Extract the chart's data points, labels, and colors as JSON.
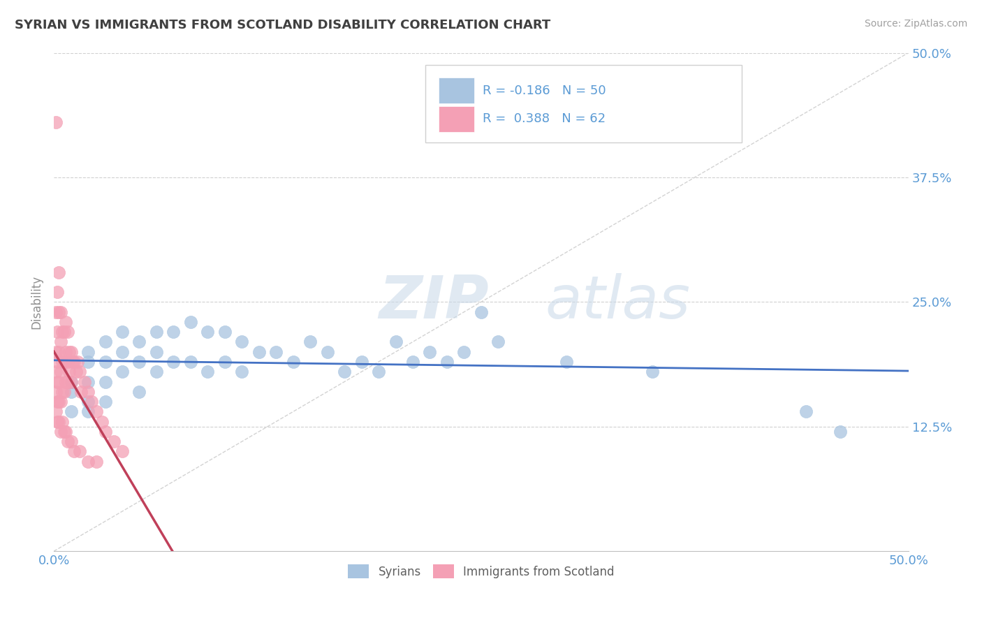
{
  "title": "SYRIAN VS IMMIGRANTS FROM SCOTLAND DISABILITY CORRELATION CHART",
  "source": "Source: ZipAtlas.com",
  "ylabel": "Disability",
  "xlim": [
    0.0,
    0.5
  ],
  "ylim": [
    0.0,
    0.5
  ],
  "blue_R": -0.186,
  "blue_N": 50,
  "pink_R": 0.388,
  "pink_N": 62,
  "blue_color": "#a8c4e0",
  "pink_color": "#f4a0b5",
  "blue_line_color": "#4472c4",
  "pink_line_color": "#c0405a",
  "legend_label_blue": "Syrians",
  "legend_label_pink": "Immigrants from Scotland",
  "watermark_zip": "ZIP",
  "watermark_atlas": "atlas",
  "title_color": "#404040",
  "axis_color": "#5b9bd5",
  "grid_color": "#d0d0d0",
  "blue_scatter_x": [
    0.01,
    0.01,
    0.01,
    0.02,
    0.02,
    0.02,
    0.02,
    0.02,
    0.03,
    0.03,
    0.03,
    0.03,
    0.04,
    0.04,
    0.04,
    0.05,
    0.05,
    0.05,
    0.06,
    0.06,
    0.06,
    0.07,
    0.07,
    0.08,
    0.08,
    0.09,
    0.09,
    0.1,
    0.1,
    0.11,
    0.11,
    0.12,
    0.13,
    0.14,
    0.15,
    0.16,
    0.17,
    0.18,
    0.19,
    0.2,
    0.21,
    0.22,
    0.23,
    0.24,
    0.25,
    0.26,
    0.3,
    0.35,
    0.44,
    0.46
  ],
  "blue_scatter_y": [
    0.17,
    0.16,
    0.14,
    0.2,
    0.19,
    0.17,
    0.15,
    0.14,
    0.21,
    0.19,
    0.17,
    0.15,
    0.22,
    0.2,
    0.18,
    0.21,
    0.19,
    0.16,
    0.22,
    0.2,
    0.18,
    0.22,
    0.19,
    0.23,
    0.19,
    0.22,
    0.18,
    0.22,
    0.19,
    0.21,
    0.18,
    0.2,
    0.2,
    0.19,
    0.21,
    0.2,
    0.18,
    0.19,
    0.18,
    0.21,
    0.19,
    0.2,
    0.19,
    0.2,
    0.24,
    0.21,
    0.19,
    0.18,
    0.14,
    0.12
  ],
  "pink_scatter_x": [
    0.001,
    0.001,
    0.001,
    0.001,
    0.001,
    0.002,
    0.002,
    0.002,
    0.002,
    0.002,
    0.003,
    0.003,
    0.003,
    0.003,
    0.003,
    0.004,
    0.004,
    0.004,
    0.004,
    0.005,
    0.005,
    0.005,
    0.006,
    0.006,
    0.006,
    0.007,
    0.007,
    0.007,
    0.008,
    0.008,
    0.008,
    0.009,
    0.009,
    0.01,
    0.01,
    0.011,
    0.012,
    0.013,
    0.014,
    0.015,
    0.016,
    0.018,
    0.02,
    0.022,
    0.025,
    0.028,
    0.03,
    0.035,
    0.04,
    0.001,
    0.002,
    0.003,
    0.004,
    0.005,
    0.006,
    0.007,
    0.008,
    0.01,
    0.012,
    0.015,
    0.02,
    0.025
  ],
  "pink_scatter_y": [
    0.43,
    0.24,
    0.2,
    0.18,
    0.16,
    0.26,
    0.22,
    0.19,
    0.17,
    0.15,
    0.28,
    0.24,
    0.2,
    0.17,
    0.15,
    0.24,
    0.21,
    0.18,
    0.15,
    0.22,
    0.19,
    0.16,
    0.22,
    0.19,
    0.16,
    0.23,
    0.2,
    0.17,
    0.22,
    0.19,
    0.17,
    0.2,
    0.18,
    0.2,
    0.17,
    0.19,
    0.19,
    0.18,
    0.19,
    0.18,
    0.16,
    0.17,
    0.16,
    0.15,
    0.14,
    0.13,
    0.12,
    0.11,
    0.1,
    0.14,
    0.13,
    0.13,
    0.12,
    0.13,
    0.12,
    0.12,
    0.11,
    0.11,
    0.1,
    0.1,
    0.09,
    0.09
  ]
}
